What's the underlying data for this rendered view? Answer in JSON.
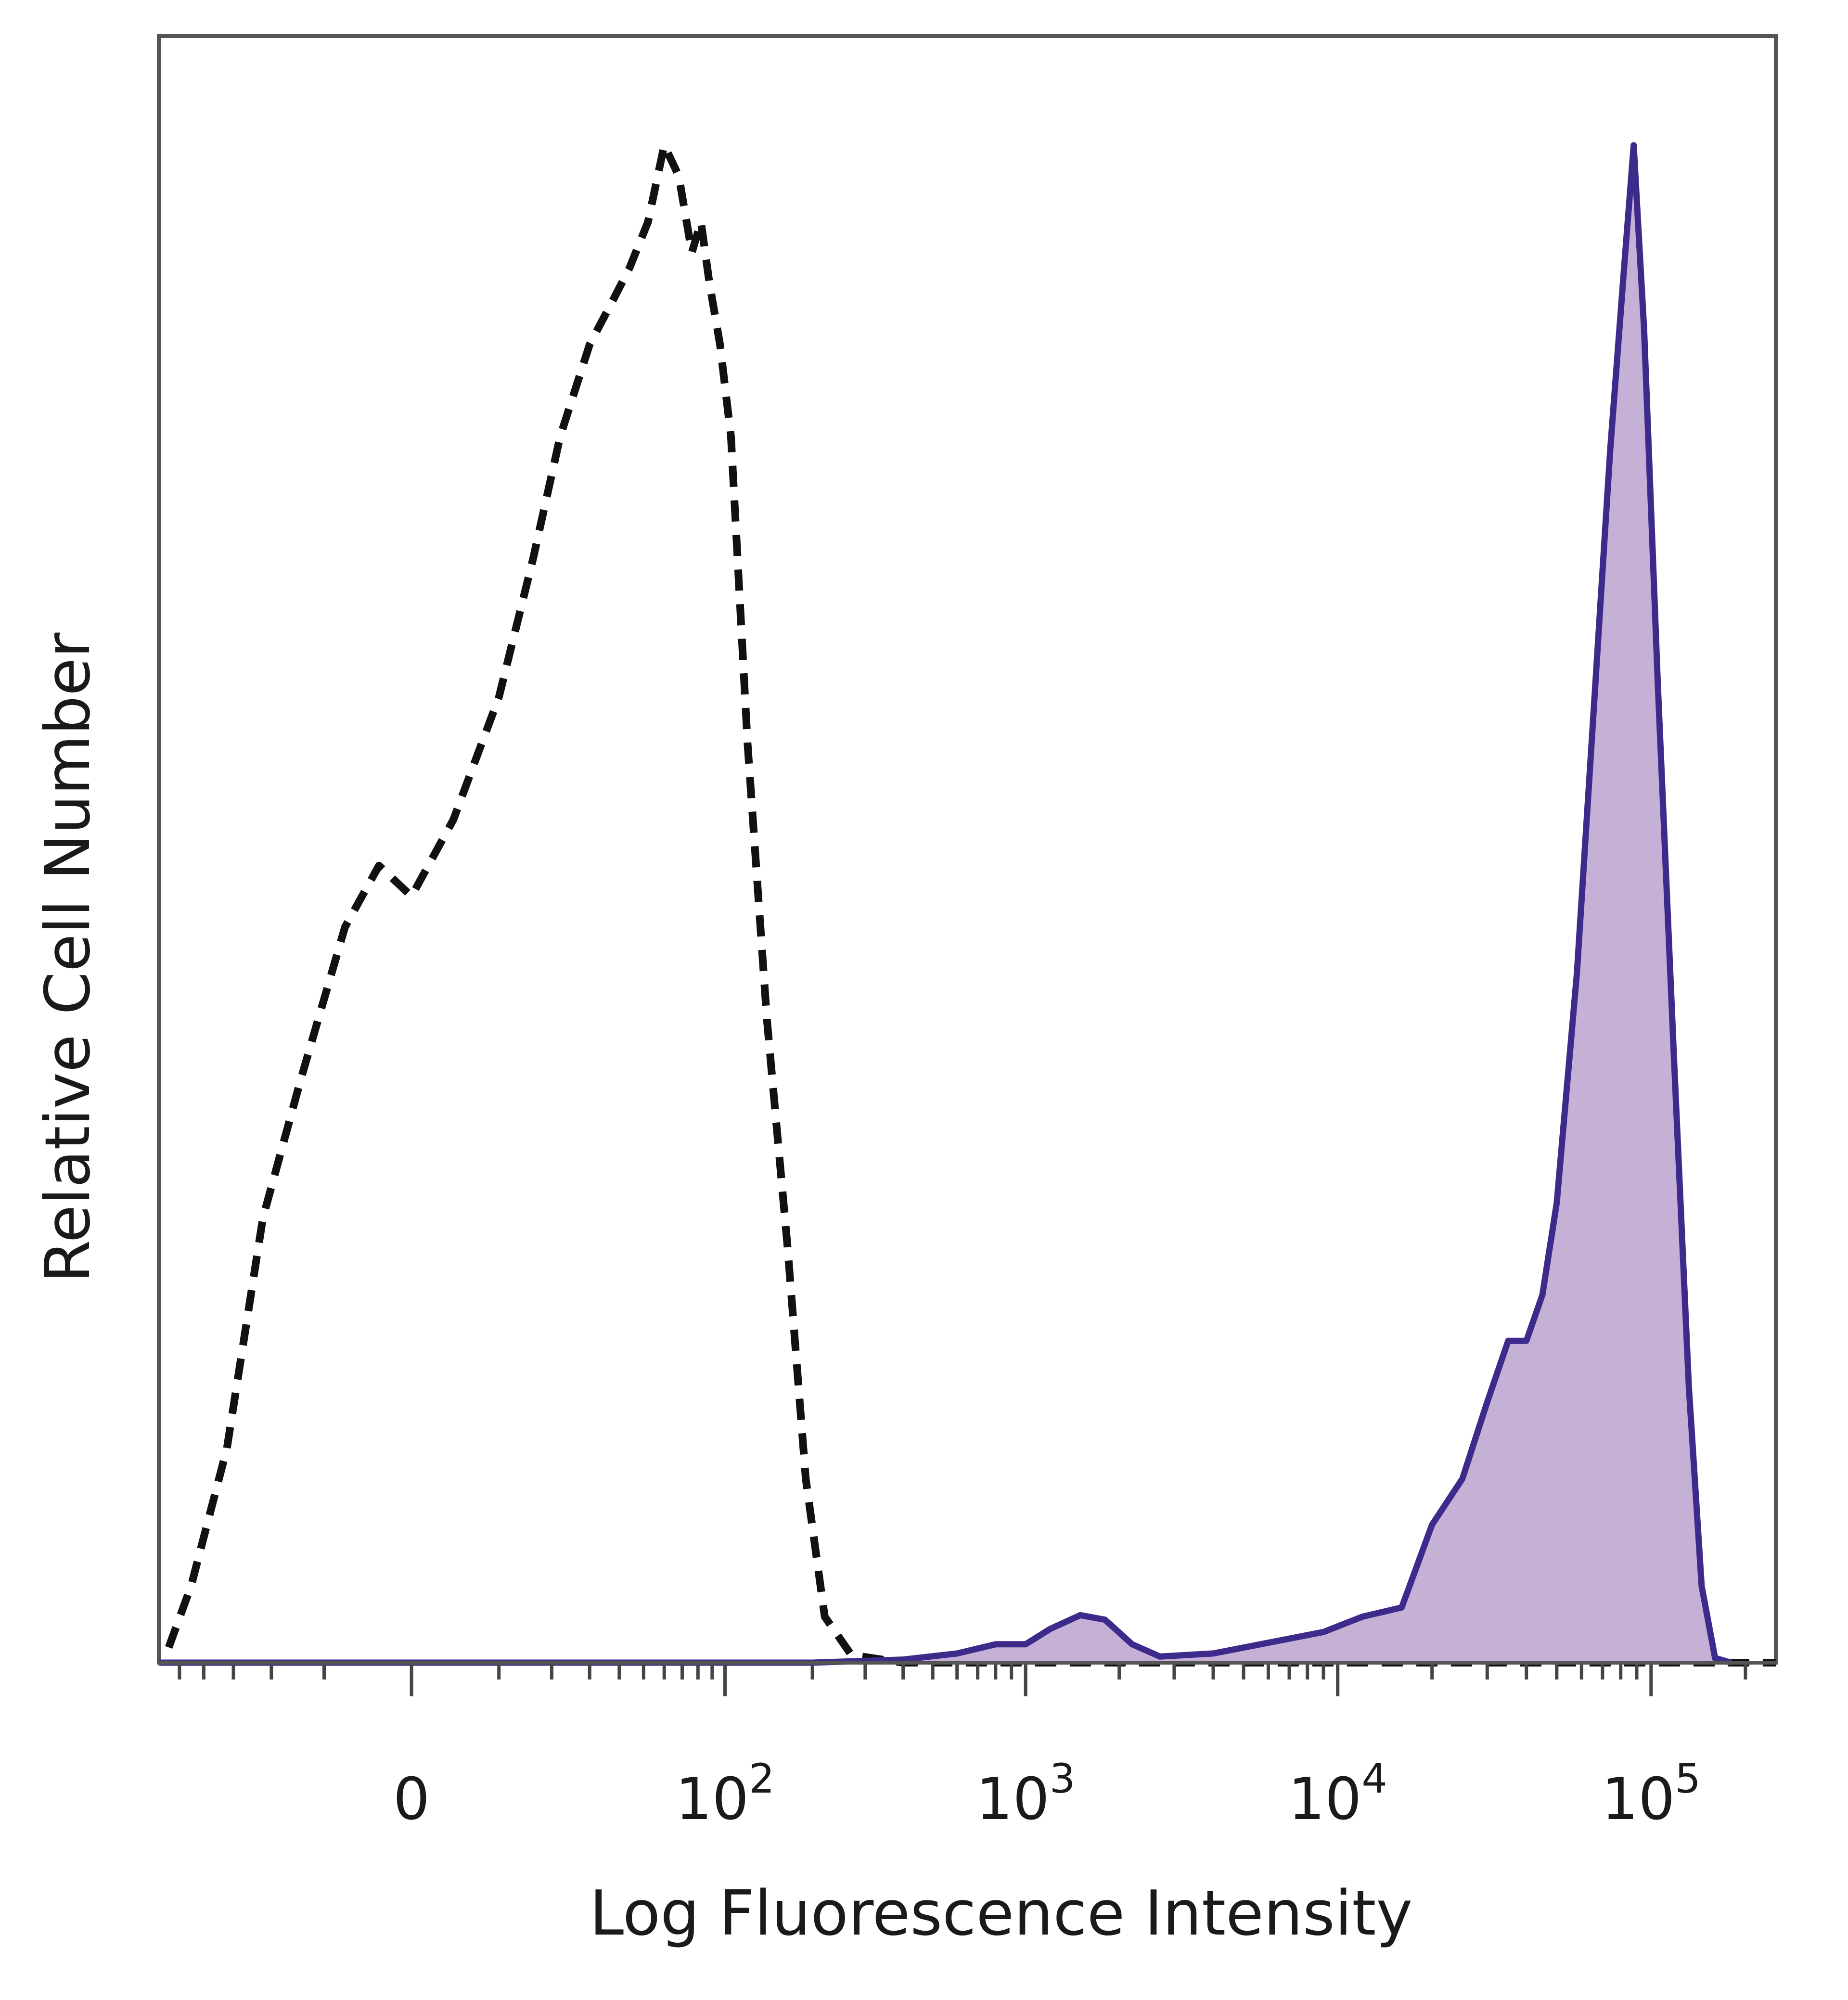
{
  "chart_data": {
    "type": "area",
    "title": "",
    "xlabel": "Log Fluorescence Intensity",
    "ylabel": "Relative Cell Number",
    "xscale": "biexponential",
    "xlim": [
      -60,
      250000
    ],
    "ylim": [
      0,
      1
    ],
    "grid": false,
    "ticks": [
      {
        "label": "0",
        "value": 0
      },
      {
        "label": "10",
        "exp": "2",
        "value": 100
      },
      {
        "label": "10",
        "exp": "3",
        "value": 1000
      },
      {
        "label": "10",
        "exp": "4",
        "value": 10000
      },
      {
        "label": "10",
        "exp": "5",
        "value": 100000
      }
    ],
    "series": [
      {
        "style": "dashed",
        "color": "#111111",
        "filled": false,
        "points": [
          [
            -55,
            0.01
          ],
          [
            -45,
            0.05
          ],
          [
            -32,
            0.14
          ],
          [
            -22,
            0.29
          ],
          [
            -14,
            0.38
          ],
          [
            -7,
            0.48
          ],
          [
            -3,
            0.52
          ],
          [
            0,
            0.5
          ],
          [
            4,
            0.55
          ],
          [
            10,
            0.63
          ],
          [
            16,
            0.72
          ],
          [
            22,
            0.8
          ],
          [
            30,
            0.86
          ],
          [
            38,
            0.89
          ],
          [
            44,
            0.91
          ],
          [
            52,
            0.94
          ],
          [
            60,
            0.99
          ],
          [
            68,
            0.97
          ],
          [
            76,
            0.92
          ],
          [
            82,
            0.94
          ],
          [
            88,
            0.9
          ],
          [
            96,
            0.86
          ],
          [
            105,
            0.8
          ],
          [
            120,
            0.6
          ],
          [
            140,
            0.42
          ],
          [
            165,
            0.27
          ],
          [
            190,
            0.12
          ],
          [
            220,
            0.03
          ],
          [
            270,
            0.005
          ],
          [
            400,
            0.0
          ],
          [
            3000,
            0.0
          ],
          [
            250000,
            0.0
          ]
        ]
      },
      {
        "style": "solid",
        "color": "#3d2a8a",
        "fill": "#c6b1d6",
        "filled": true,
        "points": [
          [
            -60,
            0.0
          ],
          [
            200,
            0.0
          ],
          [
            400,
            0.002
          ],
          [
            600,
            0.006
          ],
          [
            800,
            0.012
          ],
          [
            1000,
            0.012
          ],
          [
            1200,
            0.022
          ],
          [
            1500,
            0.031
          ],
          [
            1800,
            0.028
          ],
          [
            2200,
            0.012
          ],
          [
            2700,
            0.004
          ],
          [
            4000,
            0.006
          ],
          [
            6000,
            0.013
          ],
          [
            9000,
            0.02
          ],
          [
            12000,
            0.03
          ],
          [
            16000,
            0.036
          ],
          [
            20000,
            0.09
          ],
          [
            25000,
            0.12
          ],
          [
            30000,
            0.17
          ],
          [
            35000,
            0.21
          ],
          [
            40000,
            0.21
          ],
          [
            45000,
            0.24
          ],
          [
            50000,
            0.3
          ],
          [
            58000,
            0.45
          ],
          [
            66000,
            0.63
          ],
          [
            74000,
            0.79
          ],
          [
            82000,
            0.91
          ],
          [
            88000,
            0.99
          ],
          [
            95000,
            0.87
          ],
          [
            105000,
            0.64
          ],
          [
            118000,
            0.4
          ],
          [
            132000,
            0.18
          ],
          [
            145000,
            0.05
          ],
          [
            160000,
            0.003
          ],
          [
            180000,
            0.0
          ]
        ]
      }
    ]
  }
}
